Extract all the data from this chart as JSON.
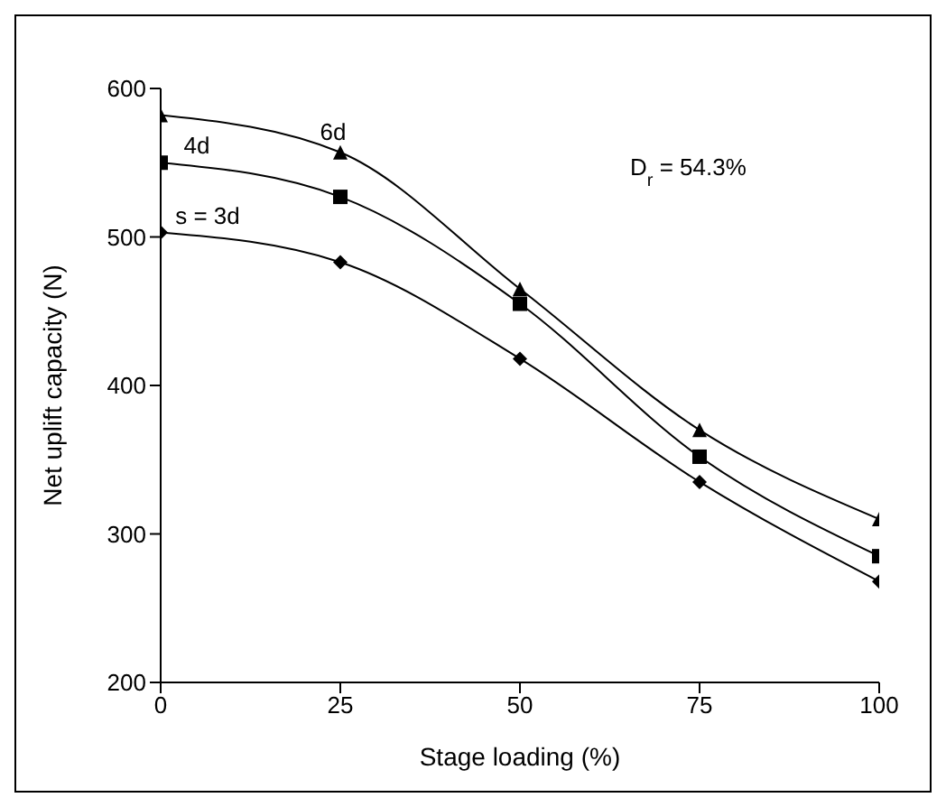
{
  "chart_data": {
    "type": "line",
    "xlabel": "Stage loading (%)",
    "ylabel": "Net uplift capacity (N)",
    "x": [
      0,
      25,
      50,
      75,
      100
    ],
    "series": [
      {
        "name": "6d",
        "color": "#000000",
        "marker": "triangle",
        "values": [
          582,
          557,
          465,
          370,
          310
        ]
      },
      {
        "name": "4d",
        "color": "#000000",
        "marker": "square",
        "values": [
          550,
          527,
          455,
          352,
          285
        ]
      },
      {
        "name": "s = 3d",
        "color": "#000000",
        "marker": "diamond",
        "values": [
          503,
          483,
          418,
          335,
          268
        ]
      }
    ],
    "xlim": [
      0,
      100
    ],
    "xticks": [
      0,
      25,
      50,
      75,
      100
    ],
    "ylim": [
      200,
      600
    ],
    "yticks": [
      200,
      300,
      400,
      500,
      600
    ],
    "grid": false,
    "legend": false,
    "line_style": "solid",
    "annotations": [
      {
        "text": "D$_{r}$ = 54.3%"
      }
    ]
  }
}
